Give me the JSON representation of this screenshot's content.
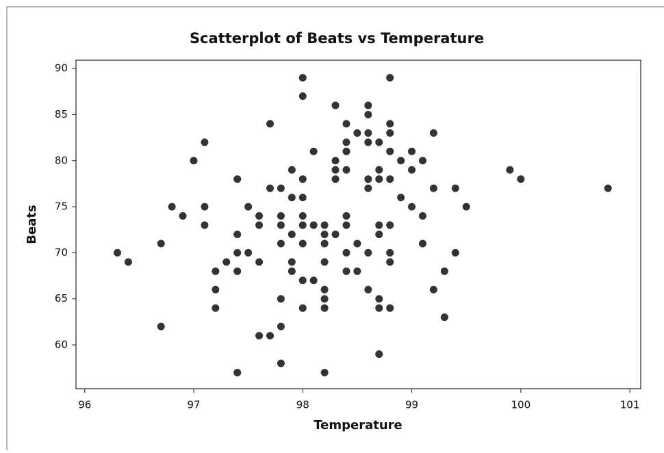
{
  "chart_data": {
    "type": "scatter",
    "title": "Scatterplot of Beats vs Temperature",
    "x_label": "Temperature",
    "y_label": "Beats",
    "color": "#333333",
    "xlim": [
      95.92,
      101.1
    ],
    "ylim": [
      55.25,
      90.9
    ],
    "xticks": [
      96,
      97,
      98,
      99,
      100,
      101
    ],
    "yticks": [
      60,
      65,
      70,
      75,
      80,
      85,
      90
    ],
    "x": [
      96.3,
      96.4,
      96.7,
      96.7,
      96.8,
      96.9,
      97.0,
      97.1,
      97.1,
      97.1,
      97.2,
      97.2,
      97.2,
      97.3,
      97.4,
      97.4,
      97.4,
      97.4,
      97.4,
      97.5,
      97.5,
      97.6,
      97.6,
      97.6,
      97.6,
      97.7,
      97.7,
      97.7,
      97.8,
      97.8,
      97.8,
      97.8,
      97.8,
      97.8,
      97.8,
      97.9,
      97.9,
      97.9,
      97.9,
      97.9,
      98.0,
      98.0,
      98.0,
      98.0,
      98.0,
      98.0,
      98.0,
      98.0,
      98.0,
      98.1,
      98.1,
      98.1,
      98.2,
      98.2,
      98.2,
      98.2,
      98.2,
      98.2,
      98.2,
      98.2,
      98.3,
      98.3,
      98.3,
      98.3,
      98.3,
      98.4,
      98.4,
      98.4,
      98.4,
      98.4,
      98.4,
      98.4,
      98.4,
      98.5,
      98.5,
      98.5,
      98.6,
      98.6,
      98.6,
      98.6,
      98.6,
      98.6,
      98.6,
      98.6,
      98.7,
      98.7,
      98.7,
      98.7,
      98.7,
      98.7,
      98.7,
      98.7,
      98.8,
      98.8,
      98.8,
      98.8,
      98.8,
      98.8,
      98.8,
      98.8,
      98.8,
      98.9,
      98.9,
      99.0,
      99.0,
      99.0,
      99.1,
      99.1,
      99.1,
      99.2,
      99.2,
      99.2,
      99.3,
      99.3,
      99.4,
      99.4,
      99.5,
      99.9,
      100.0,
      100.8
    ],
    "values": [
      70,
      69,
      71,
      62,
      75,
      74,
      80,
      82,
      75,
      73,
      68,
      66,
      64,
      69,
      78,
      72,
      70,
      68,
      57,
      75,
      70,
      74,
      73,
      69,
      61,
      84,
      77,
      61,
      77,
      74,
      73,
      71,
      65,
      62,
      58,
      79,
      76,
      72,
      69,
      68,
      89,
      87,
      78,
      76,
      74,
      73,
      71,
      67,
      64,
      81,
      73,
      67,
      73,
      72,
      71,
      69,
      66,
      65,
      64,
      57,
      86,
      80,
      79,
      78,
      72,
      84,
      82,
      81,
      79,
      74,
      73,
      70,
      68,
      83,
      71,
      68,
      86,
      85,
      83,
      82,
      78,
      77,
      70,
      66,
      82,
      79,
      78,
      73,
      72,
      65,
      64,
      59,
      89,
      84,
      83,
      81,
      78,
      73,
      70,
      69,
      64,
      80,
      76,
      81,
      79,
      75,
      80,
      74,
      71,
      83,
      77,
      66,
      68,
      63,
      77,
      70,
      75,
      79,
      78,
      77
    ]
  }
}
